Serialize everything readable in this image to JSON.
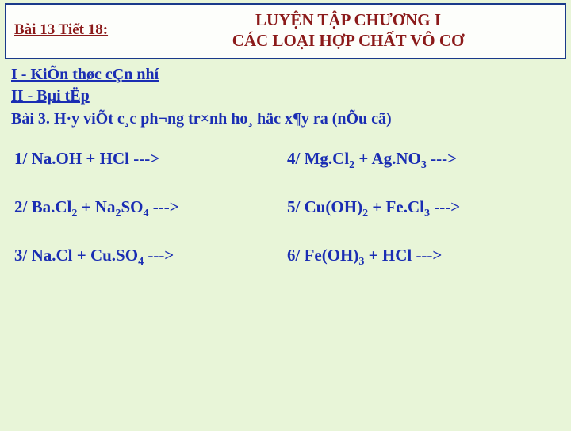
{
  "header": {
    "lesson_label": "Bài 13   Tiết 18:",
    "title_line1": "LUYỆN TẬP CHƯƠNG I",
    "title_line2": "CÁC LOẠI HỢP CHẤT VÔ CƠ"
  },
  "sections": {
    "s1": " I - KiÕn thøc cÇn nhí",
    "s2": "II - Bµi tËp",
    "exercise": "Bài 3. H·y viÕt c¸c ph­¬ng tr×nh ho¸ häc x¶y ra (nÕu cã)"
  },
  "equations": {
    "e1a": "1/ Na.OH + HCl   --->",
    "e2a": "2/ Ba.Cl",
    "e2b": "  +  Na",
    "e2c": "SO",
    "e2d": " --->",
    "e3a": "3/ Na.Cl  +  Cu.SO",
    "e3b": " --->",
    "e4a": "4/ Mg.Cl",
    "e4b": " + Ag.NO",
    "e4c": " --->",
    "e5a": "5/ Cu(OH)",
    "e5b": "  +  Fe.Cl",
    "e5c": " --->",
    "e6a": "6/ Fe(OH)",
    "e6b": "  +  HCl   --->"
  },
  "style": {
    "background": "#e8f5d8",
    "border_color": "#1a3a8a",
    "heading_color": "#8b1a1a",
    "body_color": "#1a2db3"
  }
}
